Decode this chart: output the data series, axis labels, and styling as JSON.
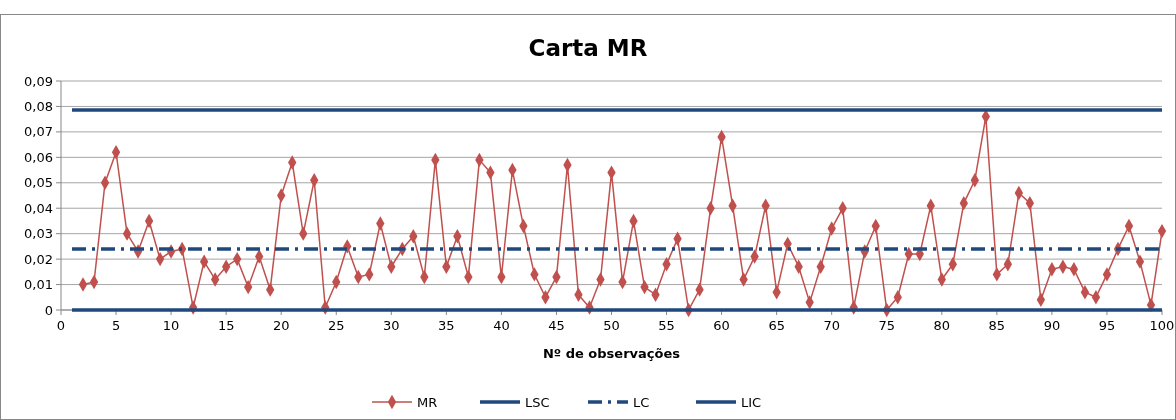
{
  "chart_data": {
    "type": "line",
    "title": "Carta MR",
    "xlabel": "Nº de observações",
    "xlim": [
      0,
      100
    ],
    "xticks": [
      0,
      5,
      10,
      15,
      20,
      25,
      30,
      35,
      40,
      45,
      50,
      55,
      60,
      65,
      70,
      75,
      80,
      85,
      90,
      95,
      100
    ],
    "ylim": [
      0,
      0.09
    ],
    "yticks": [
      {
        "value": 0,
        "label": "0"
      },
      {
        "value": 0.01,
        "label": "0,01"
      },
      {
        "value": 0.02,
        "label": "0,02"
      },
      {
        "value": 0.03,
        "label": "0,03"
      },
      {
        "value": 0.04,
        "label": "0,04"
      },
      {
        "value": 0.05,
        "label": "0,05"
      },
      {
        "value": 0.06,
        "label": "0,06"
      },
      {
        "value": 0.07,
        "label": "0,07"
      },
      {
        "value": 0.08,
        "label": "0,08"
      },
      {
        "value": 0.09,
        "label": "0,09"
      }
    ],
    "grid": "y",
    "legend": "bottom",
    "series": [
      {
        "name": "MR",
        "color": "#c0504d",
        "marker": "diamond",
        "line_style": "solid",
        "x": [
          2,
          3,
          4,
          5,
          6,
          7,
          8,
          9,
          10,
          11,
          12,
          13,
          14,
          15,
          16,
          17,
          18,
          19,
          20,
          21,
          22,
          23,
          24,
          25,
          26,
          27,
          28,
          29,
          30,
          31,
          32,
          33,
          34,
          35,
          36,
          37,
          38,
          39,
          40,
          41,
          42,
          43,
          44,
          45,
          46,
          47,
          48,
          49,
          50,
          51,
          52,
          53,
          54,
          55,
          56,
          57,
          58,
          59,
          60,
          61,
          62,
          63,
          64,
          65,
          66,
          67,
          68,
          69,
          70,
          71,
          72,
          73,
          74,
          75,
          76,
          77,
          78,
          79,
          80,
          81,
          82,
          83,
          84,
          85,
          86,
          87,
          88,
          89,
          90,
          91,
          92,
          93,
          94,
          95,
          96,
          97,
          98,
          99,
          100
        ],
        "values": [
          0.01,
          0.011,
          0.05,
          0.062,
          0.03,
          0.023,
          0.035,
          0.02,
          0.023,
          0.024,
          0.001,
          0.019,
          0.012,
          0.017,
          0.02,
          0.009,
          0.021,
          0.008,
          0.045,
          0.058,
          0.03,
          0.051,
          0.001,
          0.011,
          0.025,
          0.013,
          0.014,
          0.034,
          0.017,
          0.024,
          0.029,
          0.013,
          0.059,
          0.017,
          0.029,
          0.013,
          0.059,
          0.054,
          0.013,
          0.055,
          0.033,
          0.014,
          0.005,
          0.013,
          0.057,
          0.006,
          0.001,
          0.012,
          0.054,
          0.011,
          0.035,
          0.009,
          0.006,
          0.018,
          0.028,
          0.0,
          0.008,
          0.04,
          0.068,
          0.041,
          0.012,
          0.021,
          0.041,
          0.007,
          0.026,
          0.017,
          0.003,
          0.017,
          0.032,
          0.04,
          0.001,
          0.023,
          0.033,
          0.0,
          0.005,
          0.022,
          0.022,
          0.041,
          0.012,
          0.018,
          0.042,
          0.051,
          0.076,
          0.014,
          0.018,
          0.046,
          0.042,
          0.004,
          0.016,
          0.017,
          0.016,
          0.007,
          0.005,
          0.014,
          0.024,
          0.033,
          0.019,
          0.002,
          0.031
        ]
      },
      {
        "name": "LSC",
        "color": "#1f497d",
        "marker": "none",
        "line_style": "solid",
        "x": [
          1,
          100
        ],
        "values": [
          0.0786,
          0.0786
        ]
      },
      {
        "name": "LC",
        "color": "#1f497d",
        "marker": "none",
        "line_style": "dashed",
        "x": [
          1,
          100
        ],
        "values": [
          0.024,
          0.024
        ]
      },
      {
        "name": "LIC",
        "color": "#1f497d",
        "marker": "none",
        "line_style": "solid",
        "x": [
          1,
          100
        ],
        "values": [
          0,
          0
        ]
      }
    ]
  }
}
